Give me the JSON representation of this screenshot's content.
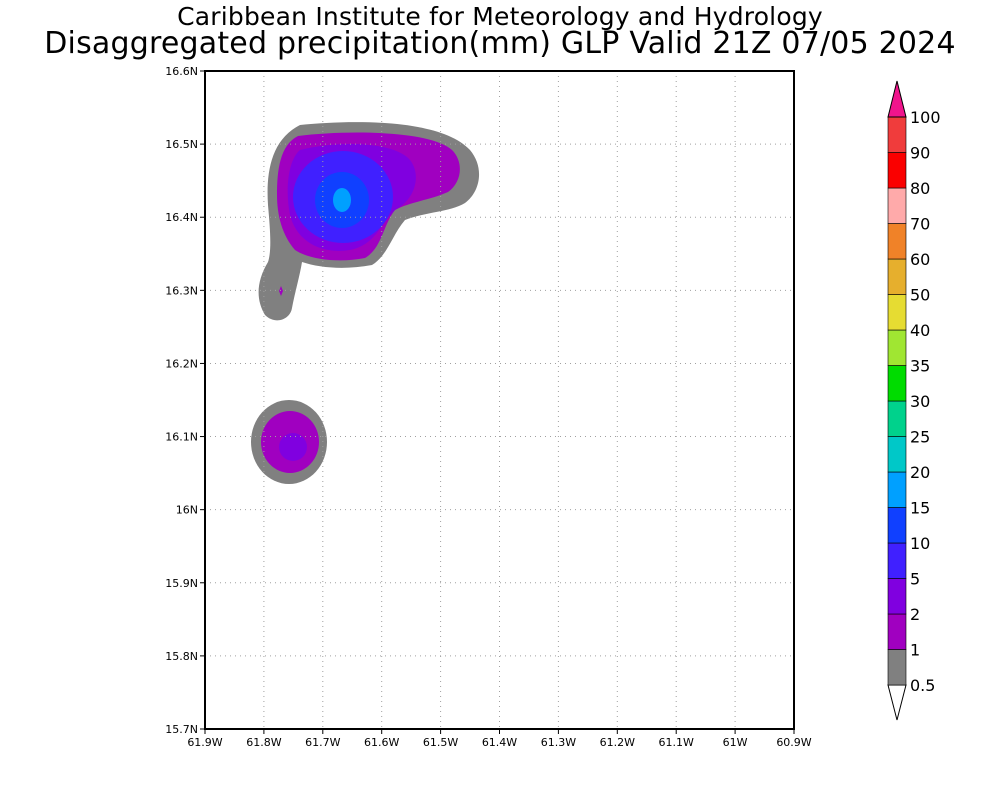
{
  "title": {
    "line1": "Caribbean Institute for Meteorology and Hydrology",
    "line2": "Disaggregated precipitation(mm) GLP Valid 21Z 07/05 2024"
  },
  "map": {
    "lon_labels": [
      "61.9W",
      "61.8W",
      "61.7W",
      "61.6W",
      "61.5W",
      "61.4W",
      "61.3W",
      "61.2W",
      "61.1W",
      "61W",
      "60.9W"
    ],
    "lat_labels": [
      "15.7N",
      "15.8N",
      "15.9N",
      "16N",
      "16.1N",
      "16.2N",
      "16.3N",
      "16.4N",
      "16.5N",
      "16.6N"
    ],
    "lon_range": [
      -61.9,
      -60.9
    ],
    "lat_range": [
      15.7,
      16.6
    ]
  },
  "legend": {
    "items": [
      {
        "label": "0.5",
        "color": "#ffffff"
      },
      {
        "label": "1",
        "color": "#808080"
      },
      {
        "label": "2",
        "color": "#a000c0"
      },
      {
        "label": "5",
        "color": "#8000e0"
      },
      {
        "label": "10",
        "color": "#4020ff"
      },
      {
        "label": "15",
        "color": "#1040ff"
      },
      {
        "label": "20",
        "color": "#00a0ff"
      },
      {
        "label": "25",
        "color": "#00c8c8"
      },
      {
        "label": "30",
        "color": "#00d28c"
      },
      {
        "label": "35",
        "color": "#00dc00"
      },
      {
        "label": "40",
        "color": "#a0e632"
      },
      {
        "label": "50",
        "color": "#e6dc32"
      },
      {
        "label": "60",
        "color": "#e6af2d"
      },
      {
        "label": "70",
        "color": "#f08228"
      },
      {
        "label": "80",
        "color": "#ffaaaa"
      },
      {
        "label": "90",
        "color": "#fa0000"
      },
      {
        "label": "100",
        "color": "#f03c3c"
      },
      {
        "label": "",
        "color": "#f0148c"
      }
    ]
  }
}
